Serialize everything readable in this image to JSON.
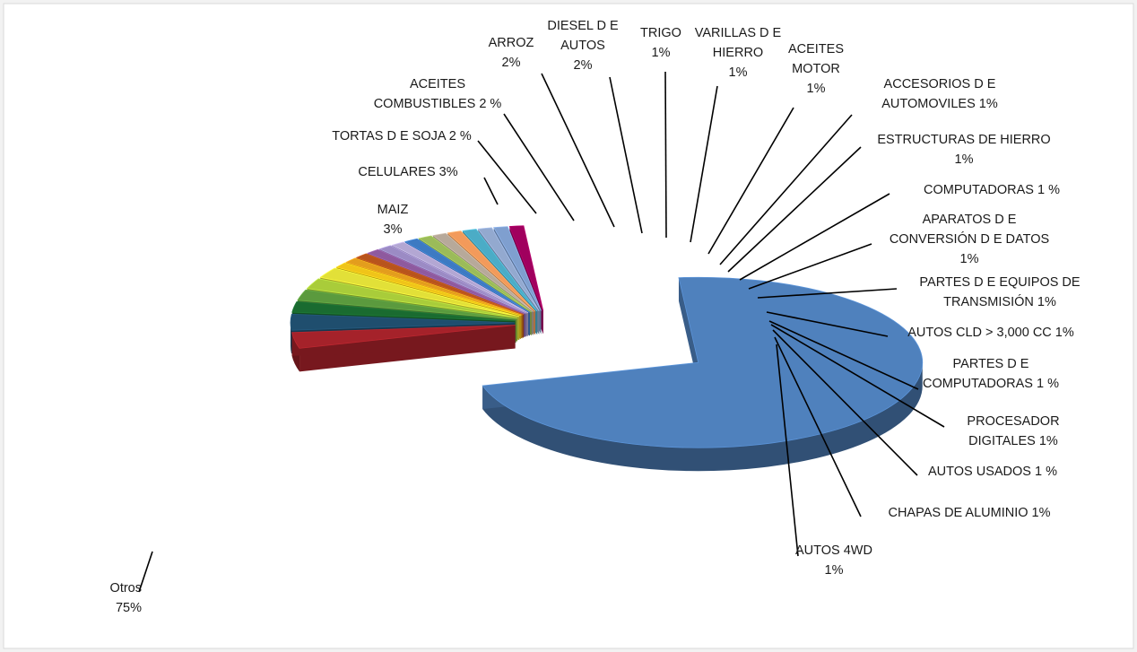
{
  "chart_data": {
    "type": "pie",
    "variant": "3d-exploded",
    "title": "",
    "unit": "%",
    "legend": "none",
    "slices": [
      {
        "key": "otros",
        "name": "Otros",
        "label_lines": [
          "Otros",
          "75%"
        ],
        "value": 75,
        "color": "#4f81bd"
      },
      {
        "key": "maiz",
        "name": "MAIZ",
        "label_lines": [
          "MAIZ",
          "3%"
        ],
        "value": 3,
        "color": "#a5222a"
      },
      {
        "key": "celulares",
        "name": "CELULARES",
        "label_lines": [
          "CELULARES 3%"
        ],
        "value": 3,
        "color": "#1f4e6e"
      },
      {
        "key": "soja",
        "name": "TORTAS D E SOJA",
        "label_lines": [
          "TORTAS D E SOJA 2 %"
        ],
        "value": 2,
        "color": "#1a6b30"
      },
      {
        "key": "combust",
        "name": "ACEITES COMBUSTIBLES",
        "label_lines": [
          "ACEITES",
          "COMBUSTIBLES 2 %"
        ],
        "value": 2,
        "color": "#5b9a3e"
      },
      {
        "key": "arroz",
        "name": "ARROZ",
        "label_lines": [
          "ARROZ",
          "2%"
        ],
        "value": 2,
        "color": "#a9cc3a"
      },
      {
        "key": "diesel",
        "name": "DIESEL D E AUTOS",
        "label_lines": [
          "DIESEL D E",
          "AUTOS",
          "2%"
        ],
        "value": 2,
        "color": "#e2e038"
      },
      {
        "key": "trigo",
        "name": "TRIGO",
        "label_lines": [
          "TRIGO",
          "1%"
        ],
        "value": 1,
        "color": "#f0c419"
      },
      {
        "key": "varillas",
        "name": "VARILLAS D E HIERRO",
        "label_lines": [
          "VARILLAS D E",
          "HIERRO",
          "1%"
        ],
        "value": 1,
        "color": "#e39d1d"
      },
      {
        "key": "aceites_motor",
        "name": "ACEITES MOTOR",
        "label_lines": [
          "ACEITES",
          "MOTOR",
          "1%"
        ],
        "value": 1,
        "color": "#b8541c"
      },
      {
        "key": "accesorios",
        "name": "ACCESORIOS D E AUTOMOVILES",
        "label_lines": [
          "ACCESORIOS D E",
          "AUTOMOVILES 1%"
        ],
        "value": 1,
        "color": "#8e5a9e"
      },
      {
        "key": "estructuras",
        "name": "ESTRUCTURAS DE HIERRO",
        "label_lines": [
          "ESTRUCTURAS DE HIERRO",
          "1%"
        ],
        "value": 1,
        "color": "#9b8bc4"
      },
      {
        "key": "computadoras",
        "name": "COMPUTADORAS",
        "label_lines": [
          "COMPUTADORAS 1 %"
        ],
        "value": 1,
        "color": "#b3a7d3"
      },
      {
        "key": "aparatos",
        "name": "APARATOS D E CONVERSIÓN D E DATOS",
        "label_lines": [
          "APARATOS D E",
          "CONVERSIÓN D E DATOS",
          "1%"
        ],
        "value": 1,
        "color": "#3d7ac2"
      },
      {
        "key": "partes_trans",
        "name": "PARTES D E EQUIPOS DE TRANSMISIÓN",
        "label_lines": [
          "PARTES D E EQUIPOS DE",
          "TRANSMISIÓN 1%"
        ],
        "value": 1,
        "color": "#9bbb59"
      },
      {
        "key": "autos_cld",
        "name": "AUTOS CLD > 3,000 CC",
        "label_lines": [
          "AUTOS CLD > 3,000 CC 1%"
        ],
        "value": 1,
        "color": "#b7a99a"
      },
      {
        "key": "partes_comp",
        "name": "PARTES D E COMPUTADORAS",
        "label_lines": [
          "PARTES D E",
          "COMPUTADORAS 1 %"
        ],
        "value": 1,
        "color": "#f29a5b"
      },
      {
        "key": "procesador",
        "name": "PROCESADOR DIGITALES",
        "label_lines": [
          "PROCESADOR",
          "DIGITALES 1%"
        ],
        "value": 1,
        "color": "#4bacc6"
      },
      {
        "key": "usados",
        "name": "AUTOS USADOS",
        "label_lines": [
          "AUTOS USADOS 1 %"
        ],
        "value": 1,
        "color": "#93a9cf"
      },
      {
        "key": "chapas",
        "name": "CHAPAS DE ALUMINIO",
        "label_lines": [
          "CHAPAS DE ALUMINIO 1%"
        ],
        "value": 1,
        "color": "#7f9fcf"
      },
      {
        "key": "autos4wd",
        "name": "AUTOS 4WD",
        "label_lines": [
          "AUTOS 4WD",
          "1%"
        ],
        "value": 1,
        "color": "#a0005e"
      }
    ]
  }
}
